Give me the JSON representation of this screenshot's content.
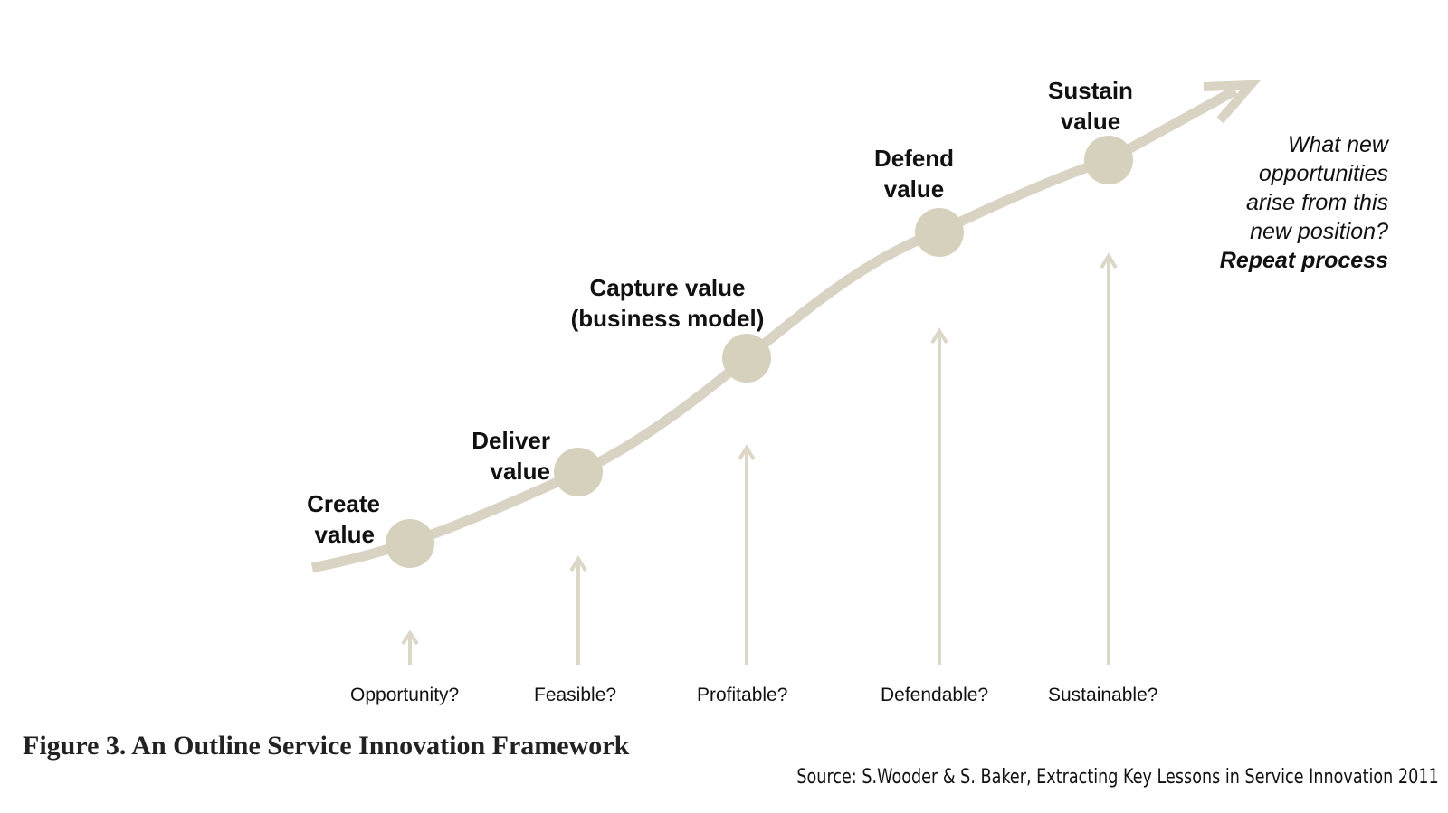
{
  "colors": {
    "curve": "#d8d3c2",
    "node": "#d6d1bd",
    "arrow": "#dcd7c7",
    "text": "#111111"
  },
  "stages": [
    {
      "label_line1": "Create",
      "label_line2": "value"
    },
    {
      "label_line1": "Deliver",
      "label_line2": "value"
    },
    {
      "label_line1": "Capture value",
      "label_line2": "(business model)"
    },
    {
      "label_line1": "Defend",
      "label_line2": "value"
    },
    {
      "label_line1": "Sustain",
      "label_line2": "value"
    }
  ],
  "questions": [
    "Opportunity?",
    "Feasible?",
    "Profitable?",
    "Defendable?",
    "Sustainable?"
  ],
  "note": {
    "line1": "What new",
    "line2": "opportunities",
    "line3": "arise from this",
    "line4": "new position?",
    "bold_line": "Repeat process"
  },
  "caption": "Figure 3.  An Outline Service Innovation Framework",
  "source": "Source: S.Wooder &  S. Baker,  Extracting Key Lessons in Service Innovation 2011"
}
